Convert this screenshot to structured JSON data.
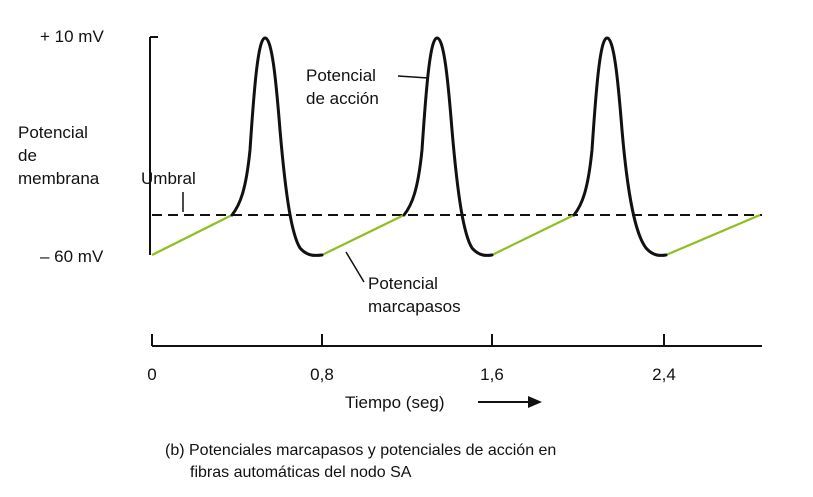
{
  "y_axis": {
    "top_tick": "+ 10 mV",
    "bottom_tick": "– 60 mV",
    "label_lines": [
      "Potencial",
      "de",
      "membrana"
    ]
  },
  "x_axis": {
    "ticks": [
      "0",
      "0,8",
      "1,6",
      "2,4"
    ],
    "label": "Tiempo (seg)"
  },
  "annotations": {
    "umbral": "Umbral",
    "action_potential_lines": [
      "Potencial",
      "de acción"
    ],
    "pacemaker_lines": [
      "Potencial",
      "marcapasos"
    ]
  },
  "caption_lines": [
    "(b) Potenciales marcapasos y potenciales de acción en",
    "fibras automáticas del nodo SA"
  ],
  "colors": {
    "trace": "#111111",
    "pacemaker": "#8cbf1f",
    "threshold": "#111111"
  },
  "chart_data": {
    "type": "line",
    "x_unit": "seg",
    "y_unit": "mV",
    "y_range": [
      -60,
      10
    ],
    "x_ticks": [
      0,
      0.8,
      1.6,
      2.4
    ],
    "threshold_mV": -40,
    "cycles": 3,
    "cycle_period_s": 0.8
  }
}
